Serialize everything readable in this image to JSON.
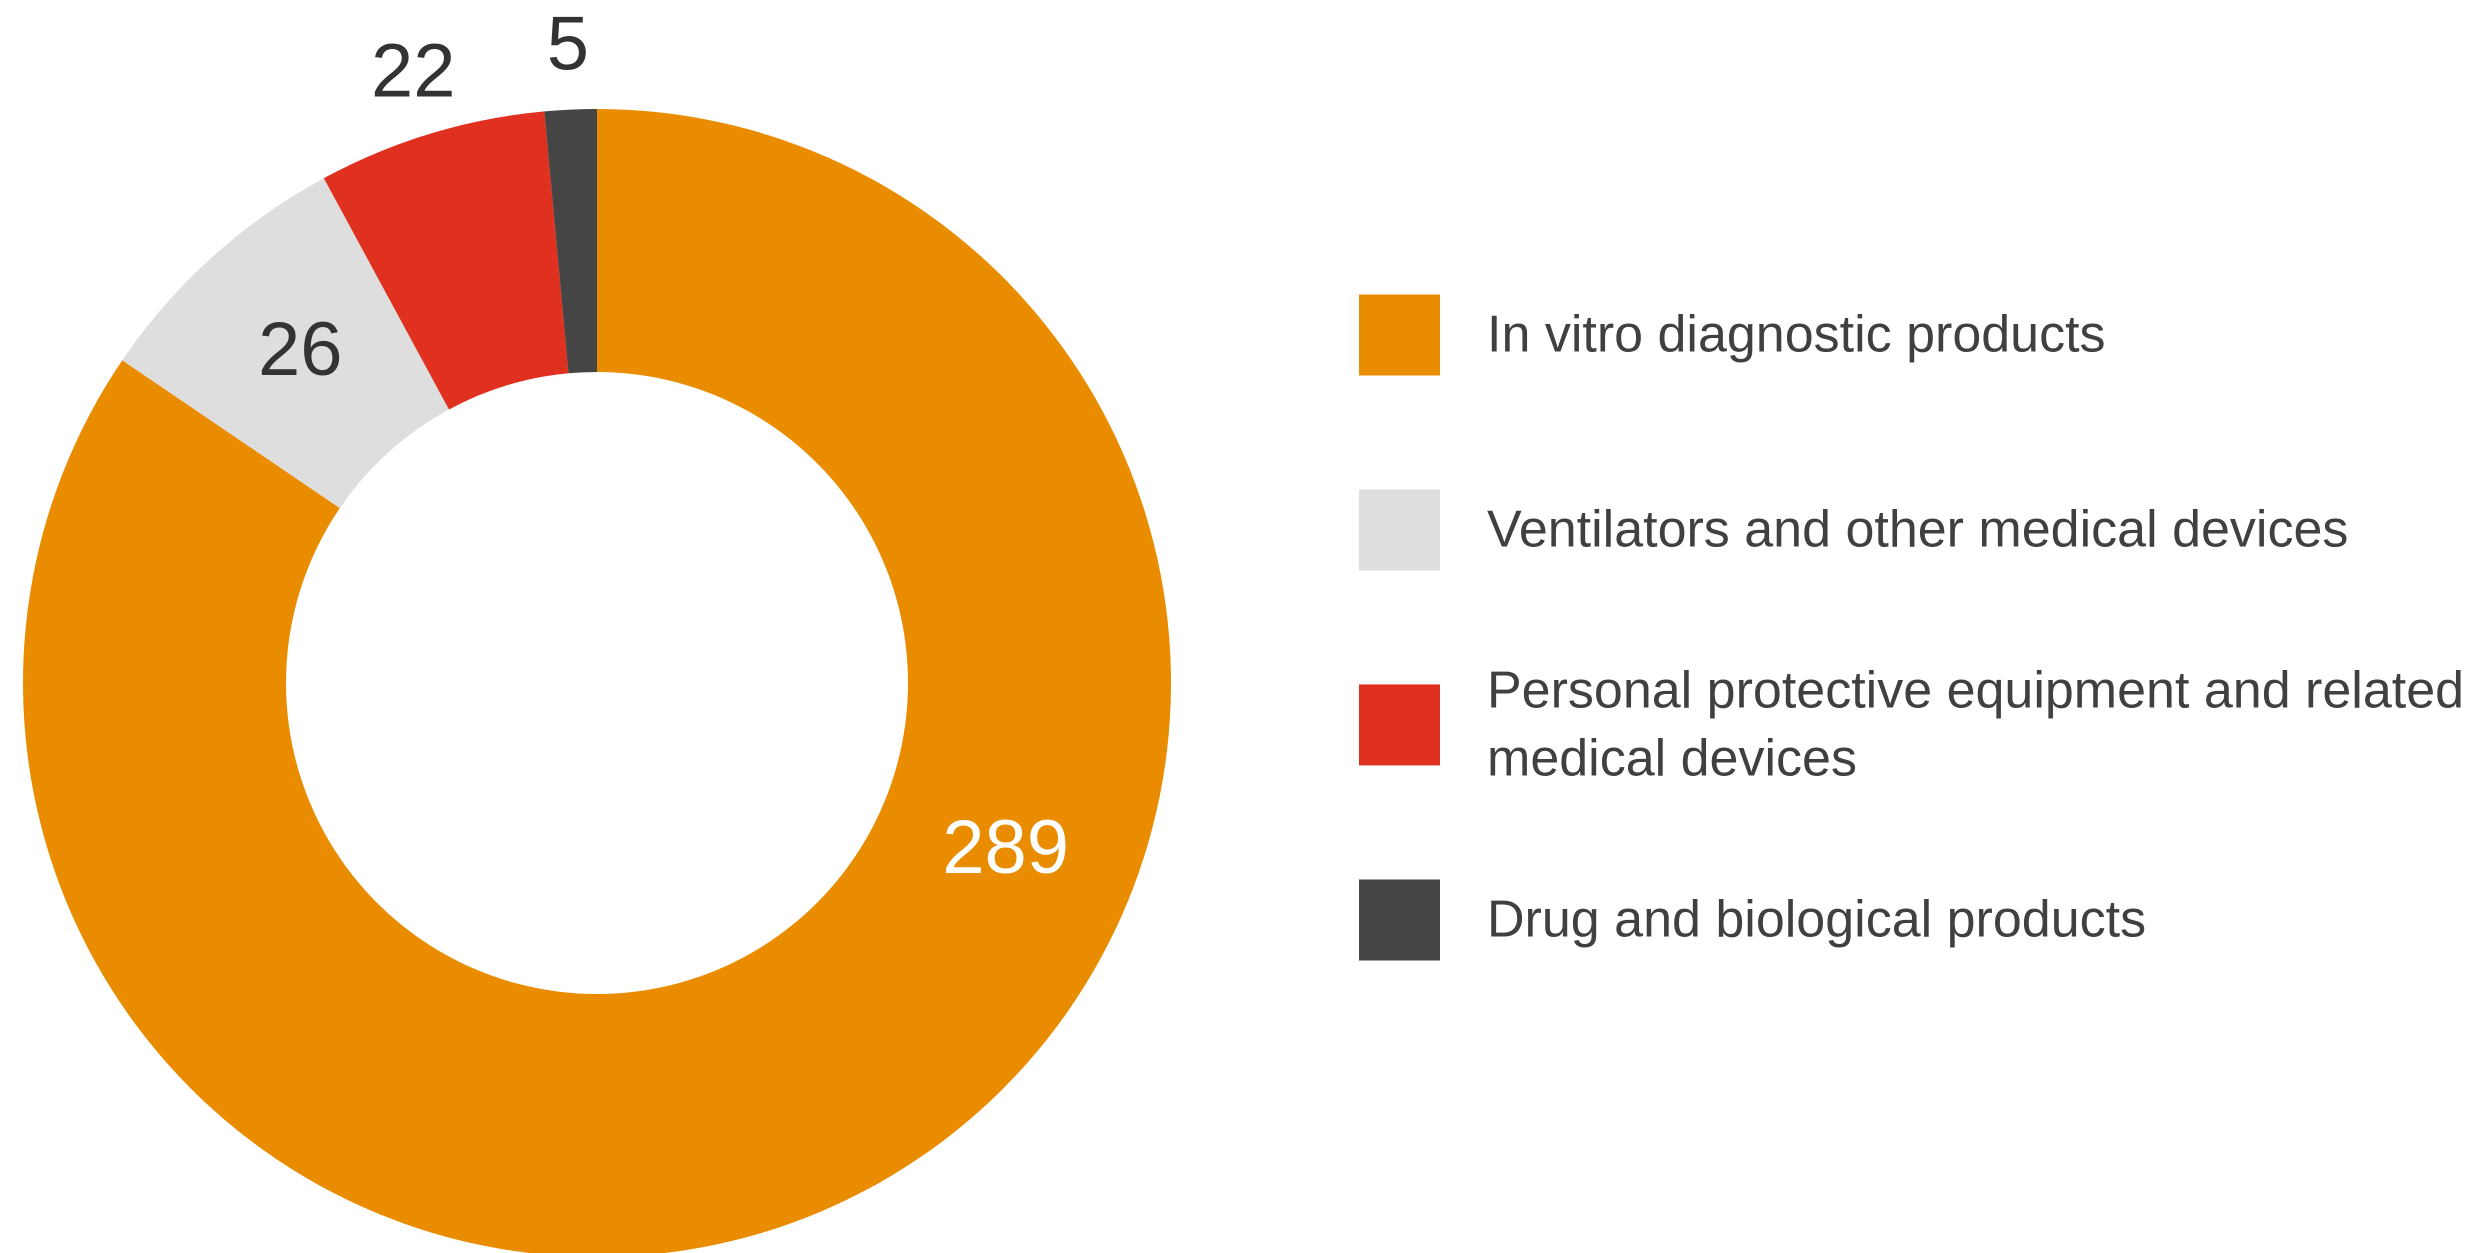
{
  "chart_data": {
    "type": "donut",
    "categories": [
      "In vitro diagnostic products",
      "Ventilators and other medical devices",
      "Personal protective equipment and related medical devices",
      "Drug and biological products"
    ],
    "values": [
      289,
      26,
      22,
      5
    ],
    "colors": [
      "#e98c00",
      "#dedede",
      "#e03120",
      "#454545"
    ]
  }
}
